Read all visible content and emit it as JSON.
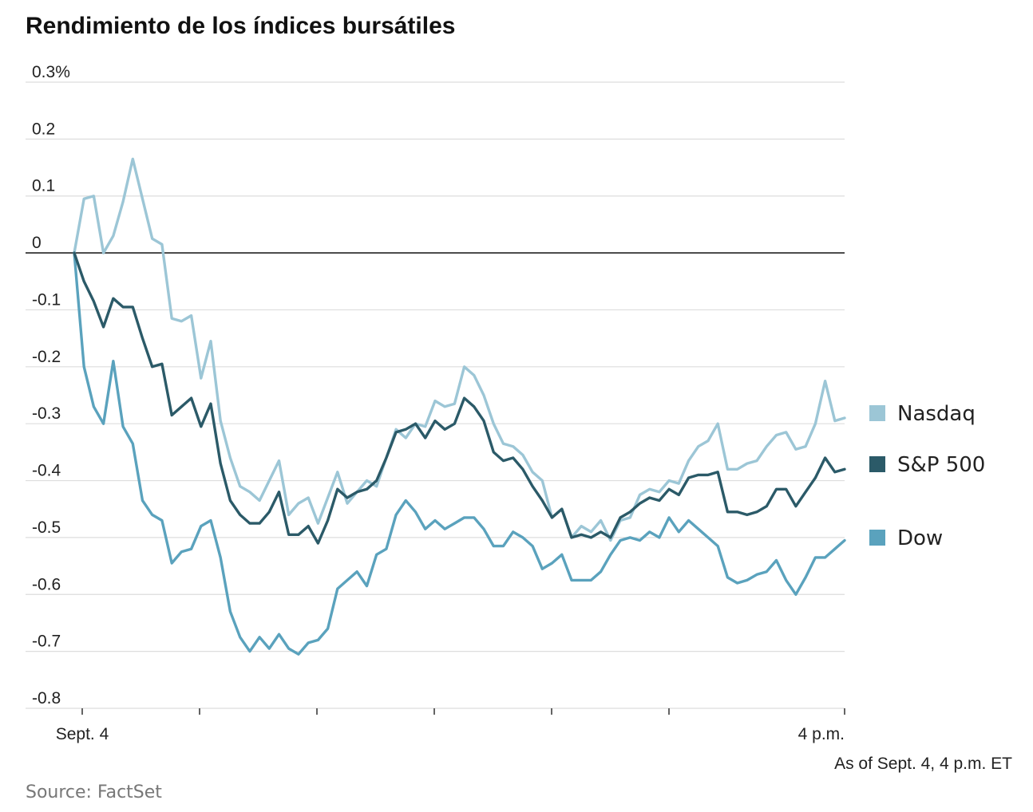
{
  "chart_data": {
    "type": "line",
    "title": "Rendimiento de los índices bursátiles",
    "ylim": [
      -0.8,
      0.3
    ],
    "y_ticks": [
      0.3,
      0.2,
      0.1,
      0,
      -0.1,
      -0.2,
      -0.3,
      -0.4,
      -0.5,
      -0.6,
      -0.7,
      -0.8
    ],
    "y_tick_labels": [
      "0.3%",
      "0.2",
      "0.1",
      "0",
      "-0.1",
      "-0.2",
      "-0.3",
      "-0.4",
      "-0.5",
      "-0.6",
      "-0.7",
      "-0.8"
    ],
    "x_labels": {
      "start": "Sept. 4",
      "end": "4 p.m."
    },
    "grid": true,
    "legend_placement": "right",
    "note": "As of Sept. 4, 4 p.m. ET",
    "source": "Source: FactSet",
    "series": [
      {
        "name": "Nasdaq",
        "color": "#9cc6d6",
        "values": [
          0,
          0.095,
          0.1,
          0,
          0.03,
          0.09,
          0.165,
          0.095,
          0.025,
          0.015,
          -0.115,
          -0.12,
          -0.11,
          -0.22,
          -0.155,
          -0.295,
          -0.36,
          -0.41,
          -0.42,
          -0.435,
          -0.4,
          -0.365,
          -0.46,
          -0.44,
          -0.43,
          -0.475,
          -0.43,
          -0.385,
          -0.44,
          -0.42,
          -0.4,
          -0.41,
          -0.36,
          -0.31,
          -0.325,
          -0.3,
          -0.305,
          -0.26,
          -0.27,
          -0.265,
          -0.2,
          -0.215,
          -0.25,
          -0.3,
          -0.335,
          -0.34,
          -0.355,
          -0.385,
          -0.4,
          -0.465,
          -0.45,
          -0.5,
          -0.48,
          -0.49,
          -0.47,
          -0.505,
          -0.47,
          -0.465,
          -0.425,
          -0.415,
          -0.42,
          -0.4,
          -0.405,
          -0.365,
          -0.34,
          -0.33,
          -0.3,
          -0.38,
          -0.38,
          -0.37,
          -0.365,
          -0.34,
          -0.32,
          -0.315,
          -0.345,
          -0.34,
          -0.3,
          -0.225,
          -0.295,
          -0.29
        ]
      },
      {
        "name": "S&P 500",
        "color": "#2b5a68",
        "values": [
          0,
          -0.05,
          -0.085,
          -0.13,
          -0.08,
          -0.095,
          -0.095,
          -0.15,
          -0.2,
          -0.195,
          -0.285,
          -0.27,
          -0.255,
          -0.305,
          -0.265,
          -0.37,
          -0.435,
          -0.46,
          -0.475,
          -0.475,
          -0.455,
          -0.42,
          -0.495,
          -0.495,
          -0.48,
          -0.51,
          -0.47,
          -0.415,
          -0.43,
          -0.42,
          -0.415,
          -0.4,
          -0.36,
          -0.315,
          -0.31,
          -0.3,
          -0.325,
          -0.295,
          -0.31,
          -0.3,
          -0.255,
          -0.27,
          -0.295,
          -0.35,
          -0.365,
          -0.36,
          -0.38,
          -0.41,
          -0.435,
          -0.465,
          -0.45,
          -0.5,
          -0.495,
          -0.5,
          -0.49,
          -0.5,
          -0.465,
          -0.455,
          -0.44,
          -0.43,
          -0.435,
          -0.415,
          -0.425,
          -0.395,
          -0.39,
          -0.39,
          -0.385,
          -0.455,
          -0.455,
          -0.46,
          -0.455,
          -0.445,
          -0.415,
          -0.415,
          -0.445,
          -0.42,
          -0.395,
          -0.36,
          -0.385,
          -0.38
        ]
      },
      {
        "name": "Dow",
        "color": "#5aa2bd",
        "values": [
          0,
          -0.2,
          -0.27,
          -0.3,
          -0.19,
          -0.305,
          -0.335,
          -0.435,
          -0.46,
          -0.47,
          -0.545,
          -0.525,
          -0.52,
          -0.48,
          -0.47,
          -0.535,
          -0.63,
          -0.675,
          -0.7,
          -0.675,
          -0.695,
          -0.67,
          -0.695,
          -0.705,
          -0.685,
          -0.68,
          -0.66,
          -0.59,
          -0.575,
          -0.56,
          -0.585,
          -0.53,
          -0.52,
          -0.46,
          -0.435,
          -0.455,
          -0.485,
          -0.47,
          -0.485,
          -0.475,
          -0.465,
          -0.465,
          -0.485,
          -0.515,
          -0.515,
          -0.49,
          -0.5,
          -0.515,
          -0.555,
          -0.545,
          -0.53,
          -0.575,
          -0.575,
          -0.575,
          -0.56,
          -0.53,
          -0.505,
          -0.5,
          -0.505,
          -0.49,
          -0.5,
          -0.465,
          -0.49,
          -0.47,
          -0.485,
          -0.5,
          -0.515,
          -0.57,
          -0.58,
          -0.575,
          -0.565,
          -0.56,
          -0.54,
          -0.575,
          -0.6,
          -0.57,
          -0.535,
          -0.535,
          -0.52,
          -0.505
        ]
      }
    ]
  }
}
